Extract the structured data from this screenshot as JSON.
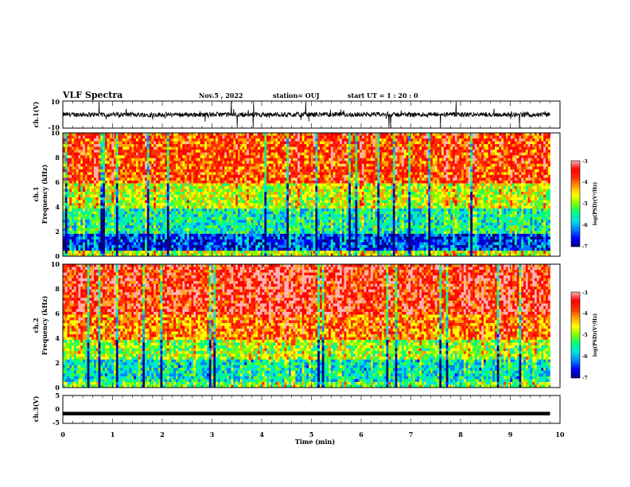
{
  "header": {
    "title": "VLF Spectra",
    "date": "Nov.5 , 2022",
    "station": "station= OUJ",
    "start": "start UT = 1 : 20 : 0"
  },
  "chart_data": [
    {
      "id": "ch1-waveform",
      "type": "line",
      "ylabel": "ch.1(V)",
      "ylim": [
        -10,
        10
      ],
      "yticks": [
        "10",
        "-10"
      ],
      "xlim": [
        0,
        10
      ],
      "data_end_min": 9.8,
      "baseline": 0,
      "color": "#000000"
    },
    {
      "id": "ch1-spectrogram",
      "type": "heatmap",
      "ylabel_1": "ch.1",
      "ylabel_2": "Frequency (kHz)",
      "ylim": [
        0,
        10
      ],
      "yticks": [
        "0",
        "2",
        "4",
        "6",
        "8",
        "10"
      ],
      "xlim": [
        0,
        10
      ],
      "data_end_min": 9.8,
      "colorbar": {
        "label": "log(PSD)(V²/Hz)",
        "range": [
          -7,
          -3
        ],
        "ticks": [
          "-3",
          "-4",
          "-5",
          "-6",
          "-7"
        ]
      }
    },
    {
      "id": "ch2-spectrogram",
      "type": "heatmap",
      "ylabel_1": "ch.2",
      "ylabel_2": "Frequency (kHz)",
      "ylim": [
        0,
        10
      ],
      "yticks": [
        "0",
        "2",
        "4",
        "6",
        "8",
        "10"
      ],
      "xlim": [
        0,
        10
      ],
      "data_end_min": 9.8,
      "colorbar": {
        "label": "log(PSD)(V²/Hz)",
        "range": [
          -7,
          -3
        ],
        "ticks": [
          "-3",
          "-4",
          "-5",
          "-6",
          "-7"
        ]
      }
    },
    {
      "id": "ch3-waveform",
      "type": "line",
      "ylabel": "ch.3(V)",
      "ylim": [
        -5,
        5
      ],
      "yticks": [
        "5",
        "0",
        "-5"
      ],
      "xlim": [
        0,
        10
      ],
      "data_end_min": 9.8,
      "baseline": -1.5,
      "color": "#000000"
    }
  ],
  "x_axis": {
    "label": "Time (min)",
    "ticks": [
      "0",
      "1",
      "2",
      "3",
      "4",
      "5",
      "6",
      "7",
      "8",
      "9",
      "10"
    ]
  },
  "colormap": [
    "#000080",
    "#0000ff",
    "#0080ff",
    "#00e0e0",
    "#00ff80",
    "#80ff00",
    "#ffff00",
    "#ffa000",
    "#ff3000",
    "#ff0000",
    "#ffb0b0"
  ]
}
